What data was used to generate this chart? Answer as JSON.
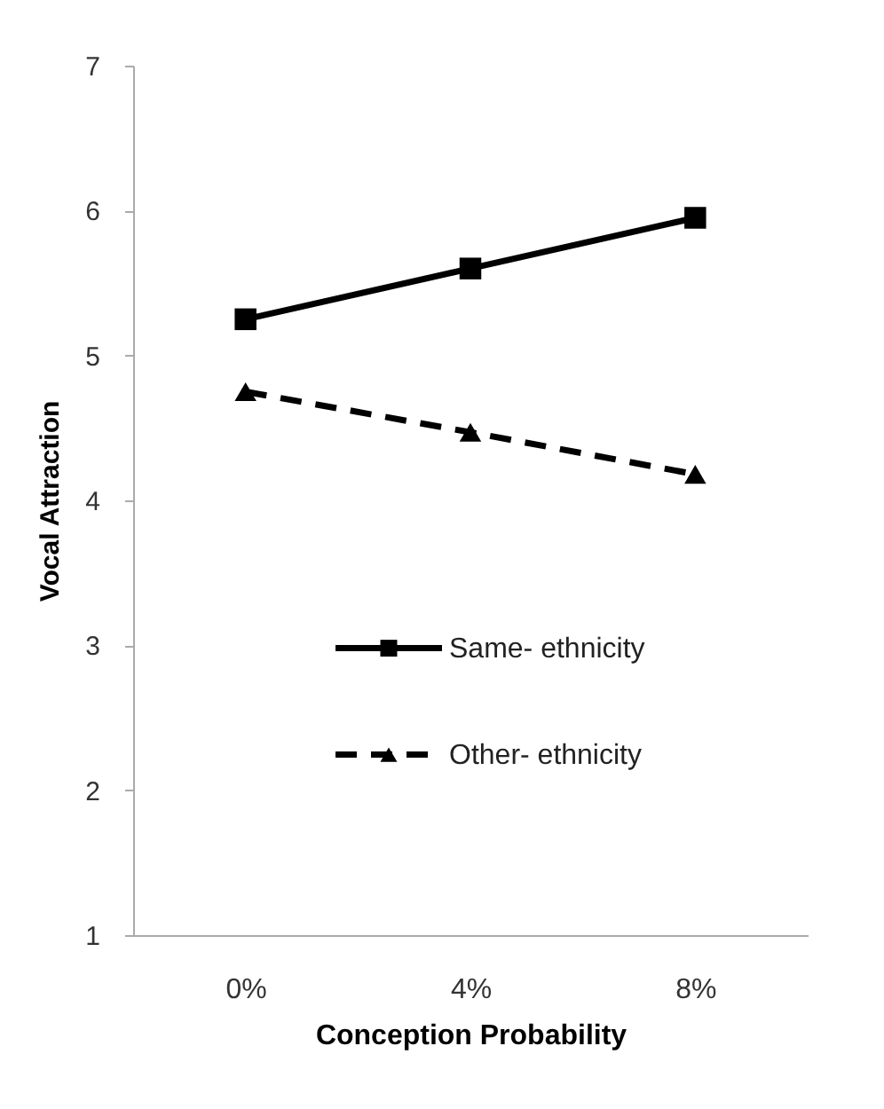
{
  "chart_data": {
    "type": "line",
    "xlabel": "Conception Probability",
    "ylabel": "Vocal Attraction",
    "categories": [
      "0%",
      "4%",
      "8%"
    ],
    "series": [
      {
        "name": "Same- ethnicity",
        "color": "#000000",
        "values": [
          5.25,
          5.6,
          5.95
        ],
        "marker": "square",
        "line_style": "solid"
      },
      {
        "name": "Other- ethnicity",
        "color": "#000000",
        "values": [
          4.75,
          4.47,
          4.18
        ],
        "marker": "triangle",
        "line_style": "dashed"
      }
    ],
    "ylim": [
      1,
      7
    ],
    "yticks": [
      1,
      2,
      3,
      4,
      5,
      6,
      7
    ],
    "grid": false,
    "legend": "bottom"
  }
}
